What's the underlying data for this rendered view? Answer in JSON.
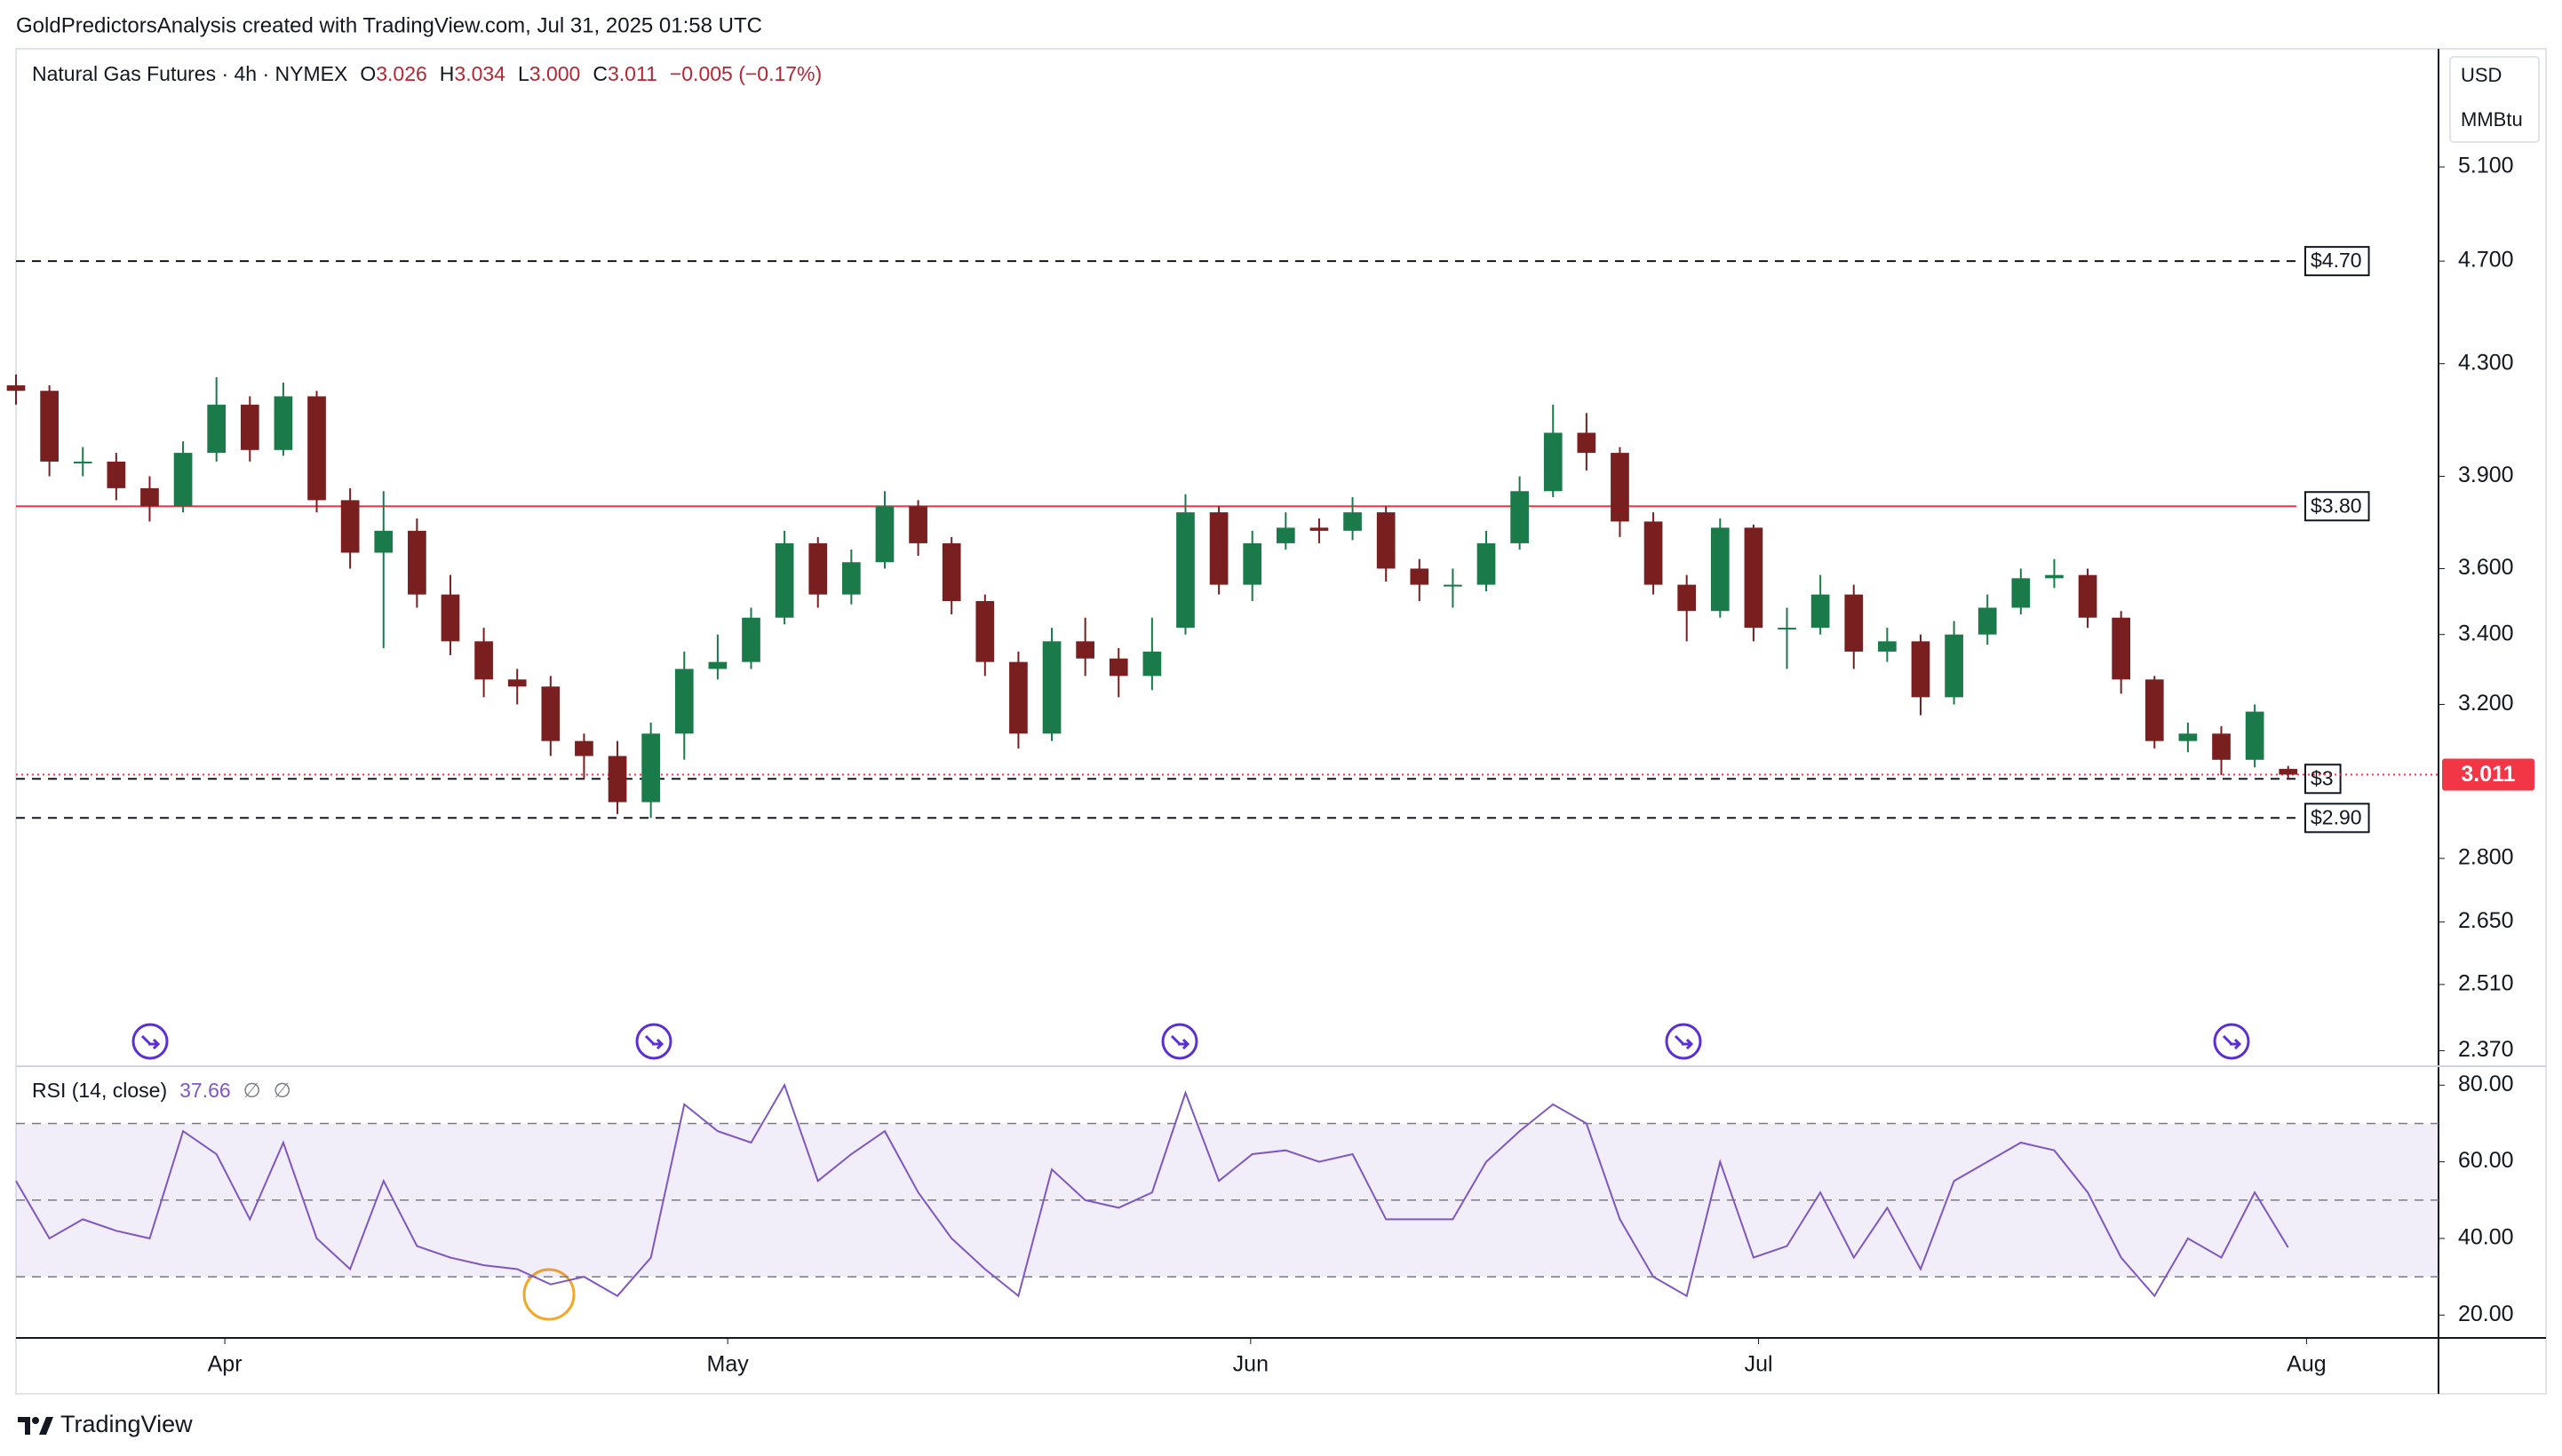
{
  "header": "GoldPredictorsAnalysis created with TradingView.com, Jul 31, 2025 01:58 UTC",
  "footer": "TradingView",
  "chart_data": [
    {
      "type": "candlestick",
      "title": "Natural Gas Futures · 4h · NYMEX",
      "legend_keys": [
        "O",
        "H",
        "L",
        "C"
      ],
      "legend_values": [
        3.026,
        3.034,
        3,
        3.011
      ],
      "legend_value_labels": [
        "3.026",
        "3.034",
        "3.000",
        "3.011"
      ],
      "change": -0.005,
      "change_pct": -0.17,
      "change_label": "−0.005 (−0.17%)",
      "currency": "USD",
      "unit": "MMBtu",
      "log_scale": true,
      "up_color": "#1b7a4a",
      "down_color": "#7a1f1f",
      "x": [
        0,
        2,
        4,
        6,
        8,
        10,
        12,
        14,
        16,
        18,
        20,
        22,
        24,
        26,
        28,
        30,
        32,
        34,
        36,
        38,
        40,
        42,
        44,
        46,
        48,
        50,
        52,
        54,
        56,
        58,
        60,
        62,
        64,
        66,
        68,
        70,
        72,
        74,
        76,
        78,
        80,
        82,
        84,
        86,
        88,
        90,
        92,
        94,
        96,
        98,
        100,
        102,
        104,
        106,
        108,
        110,
        112,
        114,
        116,
        118,
        120,
        122,
        124,
        126,
        128,
        130,
        132,
        134,
        136
      ],
      "open": [
        4.22,
        4.2,
        3.95,
        3.95,
        3.86,
        3.8,
        3.98,
        4.15,
        3.99,
        4.18,
        3.82,
        3.65,
        3.72,
        3.52,
        3.38,
        3.27,
        3.25,
        3.1,
        3.06,
        2.94,
        3.12,
        3.3,
        3.32,
        3.45,
        3.68,
        3.52,
        3.62,
        3.8,
        3.68,
        3.5,
        3.32,
        3.12,
        3.38,
        3.33,
        3.28,
        3.42,
        3.78,
        3.55,
        3.68,
        3.73,
        3.72,
        3.78,
        3.6,
        3.55,
        3.55,
        3.68,
        3.85,
        4.05,
        3.98,
        3.75,
        3.55,
        3.47,
        3.73,
        3.42,
        3.42,
        3.52,
        3.35,
        3.38,
        3.22,
        3.4,
        3.48,
        3.57,
        3.58,
        3.45,
        3.27,
        3.1,
        3.12,
        3.05,
        3.026
      ],
      "high": [
        4.26,
        4.22,
        4.0,
        3.98,
        3.9,
        4.02,
        4.25,
        4.18,
        4.23,
        4.2,
        3.86,
        3.85,
        3.76,
        3.58,
        3.42,
        3.3,
        3.28,
        3.12,
        3.1,
        3.15,
        3.35,
        3.4,
        3.48,
        3.72,
        3.7,
        3.66,
        3.85,
        3.82,
        3.7,
        3.52,
        3.35,
        3.42,
        3.45,
        3.36,
        3.45,
        3.84,
        3.8,
        3.72,
        3.78,
        3.76,
        3.83,
        3.8,
        3.63,
        3.6,
        3.72,
        3.9,
        4.15,
        4.12,
        4.0,
        3.78,
        3.58,
        3.76,
        3.74,
        3.48,
        3.58,
        3.55,
        3.42,
        3.4,
        3.44,
        3.52,
        3.6,
        3.63,
        3.6,
        3.47,
        3.28,
        3.15,
        3.14,
        3.2,
        3.034
      ],
      "low": [
        4.15,
        3.9,
        3.9,
        3.82,
        3.75,
        3.78,
        3.95,
        3.95,
        3.97,
        3.78,
        3.6,
        3.36,
        3.48,
        3.34,
        3.22,
        3.2,
        3.06,
        3.0,
        2.91,
        2.9,
        3.05,
        3.27,
        3.3,
        3.43,
        3.48,
        3.49,
        3.6,
        3.64,
        3.46,
        3.28,
        3.08,
        3.1,
        3.28,
        3.22,
        3.24,
        3.4,
        3.52,
        3.5,
        3.66,
        3.68,
        3.69,
        3.56,
        3.5,
        3.48,
        3.53,
        3.66,
        3.83,
        3.92,
        3.7,
        3.52,
        3.38,
        3.45,
        3.38,
        3.3,
        3.4,
        3.3,
        3.32,
        3.17,
        3.2,
        3.37,
        3.46,
        3.54,
        3.42,
        3.23,
        3.08,
        3.07,
        3.01,
        3.03,
        3
      ],
      "close": [
        4.2,
        3.95,
        3.95,
        3.86,
        3.8,
        3.98,
        4.15,
        3.99,
        4.18,
        3.82,
        3.65,
        3.72,
        3.52,
        3.38,
        3.27,
        3.25,
        3.1,
        3.06,
        2.94,
        3.12,
        3.3,
        3.32,
        3.45,
        3.68,
        3.52,
        3.62,
        3.8,
        3.68,
        3.5,
        3.32,
        3.12,
        3.38,
        3.33,
        3.28,
        3.35,
        3.78,
        3.55,
        3.68,
        3.73,
        3.72,
        3.78,
        3.6,
        3.55,
        3.55,
        3.68,
        3.85,
        4.05,
        3.98,
        3.75,
        3.55,
        3.47,
        3.73,
        3.42,
        3.42,
        3.52,
        3.35,
        3.38,
        3.22,
        3.4,
        3.48,
        3.57,
        3.58,
        3.45,
        3.27,
        3.1,
        3.12,
        3.05,
        3.18,
        3.011
      ],
      "xlim": [
        0,
        145
      ],
      "xticks": [
        {
          "value": 12.5,
          "label": "Apr"
        },
        {
          "value": 42.6,
          "label": "May"
        },
        {
          "value": 73.9,
          "label": "Jun"
        },
        {
          "value": 104.3,
          "label": "Jul"
        },
        {
          "value": 137.1,
          "label": "Aug"
        }
      ],
      "ylim": [
        2.34,
        5.65
      ],
      "yticks": [
        {
          "value": 5.1,
          "label": "5.100"
        },
        {
          "value": 4.7,
          "label": "4.700"
        },
        {
          "value": 4.3,
          "label": "4.300"
        },
        {
          "value": 3.9,
          "label": "3.900"
        },
        {
          "value": 3.6,
          "label": "3.600"
        },
        {
          "value": 3.4,
          "label": "3.400"
        },
        {
          "value": 3.2,
          "label": "3.200"
        },
        {
          "value": 2.8,
          "label": "2.800"
        },
        {
          "value": 2.65,
          "label": "2.650"
        },
        {
          "value": 2.51,
          "label": "2.510"
        },
        {
          "value": 2.37,
          "label": "2.370"
        }
      ],
      "levels": [
        {
          "value": 4.7,
          "label": "$4.70",
          "color": "#131722",
          "style": "dashed"
        },
        {
          "value": 3.8,
          "label": "$3.80",
          "color": "#f23645",
          "style": "solid"
        },
        {
          "value": 3,
          "label": "$3",
          "color": "#131722",
          "style": "dashed"
        },
        {
          "value": 2.9,
          "label": "$2.90",
          "color": "#131722",
          "style": "dashed"
        }
      ],
      "last_price": {
        "value": 3.011,
        "label": "3.011",
        "color": "#f23645"
      }
    },
    {
      "type": "line",
      "title": "RSI (14, close)",
      "last_value": 37.66,
      "extra_labels": [
        "∅",
        "∅"
      ],
      "color": "#7e57c2",
      "values": [
        55,
        40,
        45,
        42,
        40,
        68,
        62,
        45,
        65,
        40,
        32,
        55,
        38,
        35,
        33,
        32,
        28,
        30,
        25,
        35,
        75,
        68,
        65,
        80,
        55,
        62,
        68,
        52,
        40,
        32,
        25,
        58,
        50,
        48,
        52,
        78,
        55,
        62,
        63,
        60,
        62,
        45,
        45,
        45,
        60,
        68,
        75,
        70,
        45,
        30,
        25,
        60,
        35,
        38,
        52,
        35,
        48,
        32,
        55,
        60,
        65,
        63,
        52,
        35,
        25,
        40,
        35,
        52,
        37.66
      ],
      "band": [
        30,
        70
      ],
      "midline": 50,
      "ylim": [
        14.5,
        84.7
      ],
      "yticks": [
        {
          "value": 80,
          "label": "80.00"
        },
        {
          "value": 60,
          "label": "60.00"
        },
        {
          "value": 40,
          "label": "40.00"
        },
        {
          "value": 20,
          "label": "20.00"
        }
      ]
    }
  ]
}
